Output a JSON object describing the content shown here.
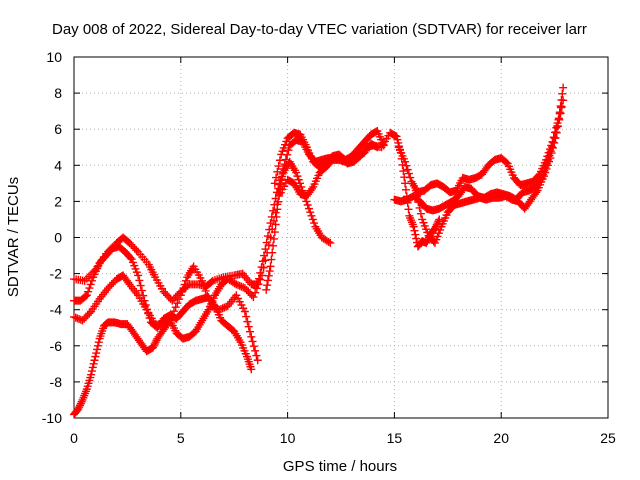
{
  "chart_data": {
    "type": "scatter",
    "title": "Day 008 of 2022, Sidereal Day-to-day VTEC variation (SDTVAR) for receiver larr",
    "xlabel": "GPS time / hours",
    "ylabel": "SDTVAR / TECUs",
    "xlim": [
      0,
      25
    ],
    "ylim": [
      -10,
      10
    ],
    "xticks": [
      0,
      5,
      10,
      15,
      20,
      25
    ],
    "yticks": [
      -10,
      -8,
      -6,
      -4,
      -2,
      0,
      2,
      4,
      6,
      8,
      10
    ],
    "grid": true,
    "marker": "+",
    "color": "#ff0000",
    "series": [
      {
        "x": [
          0.0,
          0.5,
          1.0,
          1.5,
          2.0,
          2.3,
          2.6,
          3.0,
          3.5,
          3.8,
          4.2,
          4.6,
          5.0,
          5.4,
          5.8,
          6.2,
          6.5,
          7.0,
          7.5,
          7.9,
          8.3,
          8.6,
          8.9,
          9.2,
          9.5,
          9.8,
          10.1,
          10.4,
          10.7,
          11.0,
          11.3,
          11.6,
          12.0
        ],
        "y": [
          -2.3,
          -2.4,
          -1.8,
          -0.9,
          -0.3,
          0.0,
          -0.3,
          -0.8,
          -1.5,
          -2.2,
          -3.0,
          -3.5,
          -3.0,
          -2.6,
          -2.6,
          -2.7,
          -2.4,
          -2.2,
          -2.1,
          -2.0,
          -2.6,
          -2.6,
          -1.0,
          0.8,
          2.5,
          3.6,
          4.2,
          3.6,
          2.6,
          1.6,
          0.6,
          0.0,
          -0.3
        ]
      },
      {
        "x": [
          0.0,
          0.4,
          0.8,
          1.2,
          1.6,
          2.0,
          2.3,
          2.6,
          3.0,
          3.4,
          3.8,
          4.2,
          4.6,
          5.0,
          5.3,
          5.6,
          6.0,
          6.4,
          6.8,
          7.2,
          7.6,
          8.0,
          8.3,
          8.6
        ],
        "y": [
          -4.4,
          -4.6,
          -4.1,
          -3.4,
          -2.8,
          -2.3,
          -2.1,
          -2.6,
          -3.2,
          -4.0,
          -4.8,
          -4.9,
          -4.3,
          -3.2,
          -2.2,
          -1.6,
          -2.4,
          -3.8,
          -4.0,
          -3.8,
          -3.2,
          -4.1,
          -5.5,
          -6.8
        ]
      },
      {
        "x": [
          0.0,
          0.3,
          0.6,
          0.9,
          1.2,
          1.5,
          1.8,
          2.1,
          2.4,
          2.7,
          3.0,
          3.3,
          3.6,
          3.9,
          4.2,
          4.5,
          4.8,
          5.1,
          5.4,
          5.7,
          6.0,
          6.3,
          6.6,
          6.9,
          7.2,
          7.5,
          7.8,
          8.1,
          8.3
        ],
        "y": [
          -3.5,
          -3.5,
          -3.2,
          -2.2,
          -1.4,
          -1.0,
          -0.6,
          -0.5,
          -0.8,
          -1.2,
          -2.1,
          -3.5,
          -4.7,
          -5.0,
          -4.5,
          -4.3,
          -4.5,
          -4.1,
          -3.7,
          -3.5,
          -3.4,
          -3.3,
          -3.8,
          -4.6,
          -4.9,
          -5.2,
          -5.8,
          -6.6,
          -7.3
        ]
      },
      {
        "x": [
          0.0,
          0.2,
          0.4,
          0.6,
          0.8,
          1.0,
          1.2,
          1.4,
          1.6,
          1.9,
          2.2,
          2.5,
          2.8,
          3.1,
          3.4,
          3.7,
          3.9,
          4.2,
          4.5,
          4.8,
          5.1,
          5.4,
          5.7,
          6.0,
          6.3,
          6.6,
          6.9,
          7.2,
          7.6,
          8.0,
          8.4,
          8.8,
          9.2,
          9.6,
          10.0,
          10.3,
          10.6,
          10.9,
          11.2,
          11.5,
          11.8,
          12.1,
          12.4,
          12.7,
          13.0,
          13.3,
          13.6,
          13.9,
          14.2
        ],
        "y": [
          -9.8,
          -9.5,
          -9.0,
          -8.4,
          -7.6,
          -6.6,
          -5.6,
          -4.9,
          -4.7,
          -4.7,
          -4.8,
          -4.8,
          -5.3,
          -5.8,
          -6.3,
          -6.1,
          -5.6,
          -5.1,
          -4.6,
          -5.3,
          -5.6,
          -5.5,
          -5.2,
          -4.6,
          -4.0,
          -3.2,
          -2.6,
          -2.3,
          -2.6,
          -2.8,
          -3.3,
          -2.1,
          0.0,
          2.3,
          3.2,
          3.0,
          2.4,
          2.3,
          2.8,
          3.6,
          3.9,
          4.3,
          4.3,
          4.2,
          4.2,
          4.5,
          4.7,
          5.2,
          5.0
        ]
      },
      {
        "x": [
          9.0,
          9.2,
          9.4,
          9.6,
          9.8,
          10.1,
          10.4,
          10.7,
          11.0,
          11.3,
          11.6,
          11.9,
          12.2,
          12.5,
          12.8,
          13.1,
          13.4,
          13.7,
          14.0,
          14.4,
          14.8,
          15.1,
          15.3,
          15.5,
          15.7,
          15.9,
          16.1,
          16.3,
          16.5,
          16.7,
          16.9,
          17.1
        ],
        "y": [
          -2.9,
          -1.6,
          0.3,
          2.4,
          3.8,
          5.1,
          5.4,
          5.3,
          4.6,
          4.2,
          4.3,
          4.4,
          4.4,
          4.4,
          4.1,
          4.2,
          4.5,
          5.0,
          5.1,
          5.0,
          5.8,
          5.6,
          4.7,
          3.0,
          1.2,
          0.6,
          -0.5,
          -0.2,
          -0.3,
          0.2,
          0.5,
          1.0
        ]
      },
      {
        "x": [
          9.4,
          9.7,
          10.0,
          10.3,
          10.6,
          10.9,
          11.2,
          11.5,
          11.8,
          12.1,
          12.4,
          12.7,
          13.0,
          13.3,
          13.6,
          13.9,
          14.2,
          14.5
        ],
        "y": [
          3.0,
          4.6,
          5.5,
          5.8,
          5.7,
          5.0,
          4.2,
          3.9,
          4.2,
          4.5,
          4.6,
          4.3,
          4.5,
          4.9,
          5.3,
          5.7,
          5.9,
          5.1
        ]
      },
      {
        "x": [
          15.2,
          15.5,
          15.8,
          16.1,
          16.4,
          16.7,
          17.0,
          17.3,
          17.6,
          17.9,
          18.2,
          18.5,
          18.8,
          19.1,
          19.4,
          19.7,
          20.0,
          20.3,
          20.6,
          20.9,
          21.2,
          21.5,
          21.8,
          22.1,
          22.4,
          22.7,
          22.9
        ],
        "y": [
          5.0,
          4.2,
          3.1,
          2.5,
          2.6,
          2.9,
          3.0,
          2.8,
          2.5,
          2.6,
          3.3,
          3.2,
          3.3,
          3.5,
          4.0,
          4.3,
          4.4,
          4.1,
          3.3,
          2.9,
          3.0,
          3.1,
          3.5,
          4.3,
          5.3,
          6.6,
          8.3
        ]
      },
      {
        "x": [
          15.0,
          15.3,
          15.6,
          15.9,
          16.2,
          16.5,
          16.8,
          17.1,
          17.4,
          17.7,
          18.0,
          18.3,
          18.6,
          18.9,
          19.2,
          19.5,
          19.8,
          20.1,
          20.4,
          20.7,
          21.0,
          21.3,
          21.6,
          21.9,
          22.2,
          22.5,
          22.8
        ],
        "y": [
          2.1,
          2.0,
          2.1,
          2.3,
          2.0,
          1.6,
          1.5,
          1.6,
          1.8,
          2.0,
          2.3,
          2.8,
          2.7,
          2.3,
          2.2,
          2.4,
          2.5,
          2.4,
          2.3,
          2.1,
          2.5,
          2.6,
          2.8,
          3.3,
          4.3,
          5.5,
          7.2
        ]
      },
      {
        "x": [
          16.0,
          16.3,
          16.6,
          16.9,
          17.2,
          17.5,
          17.8,
          18.1,
          18.4,
          18.7,
          19.0,
          19.3,
          19.6,
          19.9,
          20.2,
          20.5,
          20.8,
          21.1,
          21.4,
          21.7,
          22.0,
          22.3,
          22.6,
          22.9
        ],
        "y": [
          2.6,
          1.0,
          0.1,
          -0.3,
          0.6,
          1.4,
          1.8,
          1.9,
          2.0,
          2.1,
          2.2,
          2.1,
          2.2,
          2.2,
          2.3,
          2.1,
          2.0,
          1.6,
          2.1,
          2.6,
          3.4,
          4.4,
          5.8,
          7.6
        ]
      }
    ]
  }
}
